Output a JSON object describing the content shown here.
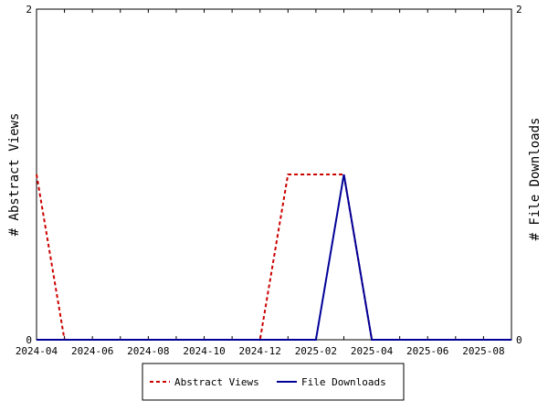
{
  "chart_data": {
    "type": "line",
    "title": "",
    "xlabel": "",
    "ylabel": "# Abstract Views",
    "y2label": "# File Downloads",
    "x": [
      "2024-04",
      "2024-05",
      "2024-06",
      "2024-07",
      "2024-08",
      "2024-09",
      "2024-10",
      "2024-11",
      "2024-12",
      "2025-01",
      "2025-02",
      "2025-03",
      "2025-04",
      "2025-05",
      "2025-06",
      "2025-07",
      "2025-08",
      "2025-09"
    ],
    "xticks": [
      "2024-04",
      "2024-06",
      "2024-08",
      "2024-10",
      "2024-12",
      "2025-02",
      "2025-04",
      "2025-06",
      "2025-08"
    ],
    "ylim": [
      0,
      2
    ],
    "y2lim": [
      0,
      2
    ],
    "yticks": [
      "0",
      "2"
    ],
    "y2ticks": [
      "0",
      "2"
    ],
    "series": [
      {
        "name": "Abstract Views",
        "axis": "left",
        "color": "#cc0000",
        "dash": true,
        "values": [
          1,
          0,
          0,
          0,
          0,
          0,
          0,
          0,
          0,
          1,
          1,
          1,
          0,
          0,
          0,
          0,
          0,
          0
        ]
      },
      {
        "name": "File Downloads",
        "axis": "right",
        "color": "#000099",
        "dash": false,
        "values": [
          0,
          0,
          0,
          0,
          0,
          0,
          0,
          0,
          0,
          0,
          0,
          1,
          0,
          0,
          0,
          0,
          0,
          0
        ]
      }
    ],
    "grid": false,
    "legend": "bottom-center"
  }
}
